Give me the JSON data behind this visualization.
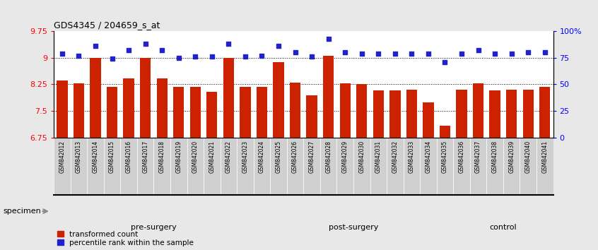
{
  "title": "GDS4345 / 204659_s_at",
  "samples": [
    "GSM842012",
    "GSM842013",
    "GSM842014",
    "GSM842015",
    "GSM842016",
    "GSM842017",
    "GSM842018",
    "GSM842019",
    "GSM842020",
    "GSM842021",
    "GSM842022",
    "GSM842023",
    "GSM842024",
    "GSM842025",
    "GSM842026",
    "GSM842027",
    "GSM842028",
    "GSM842029",
    "GSM842030",
    "GSM842031",
    "GSM842032",
    "GSM842033",
    "GSM842034",
    "GSM842035",
    "GSM842036",
    "GSM842037",
    "GSM842038",
    "GSM842039",
    "GSM842040",
    "GSM842041"
  ],
  "bar_values": [
    8.35,
    8.28,
    8.99,
    8.18,
    8.42,
    9.0,
    8.42,
    8.18,
    8.18,
    8.05,
    9.0,
    8.18,
    8.18,
    8.88,
    8.3,
    7.95,
    9.05,
    8.28,
    8.25,
    8.08,
    8.08,
    8.1,
    7.75,
    7.08,
    8.1,
    8.28,
    8.08,
    8.1,
    8.1,
    8.18
  ],
  "percentile_values": [
    79,
    77,
    86,
    74,
    82,
    88,
    82,
    75,
    76,
    76,
    88,
    76,
    77,
    86,
    80,
    76,
    93,
    80,
    79,
    79,
    79,
    79,
    79,
    71,
    79,
    82,
    79,
    79,
    80,
    80
  ],
  "groups": [
    {
      "label": "pre-surgery",
      "start": 0,
      "end": 12
    },
    {
      "label": "post-surgery",
      "start": 12,
      "end": 24
    },
    {
      "label": "control",
      "start": 24,
      "end": 30
    }
  ],
  "group_colors": [
    "#ccffcc",
    "#90ee90",
    "#44cc44"
  ],
  "ylim_left": [
    6.75,
    9.75
  ],
  "yticks_left": [
    6.75,
    7.5,
    8.25,
    9.0,
    9.75
  ],
  "ytick_labels_left": [
    "6.75",
    "7.5",
    "8.25",
    "9",
    "9.75"
  ],
  "ylim_right": [
    0,
    100
  ],
  "yticks_right": [
    0,
    25,
    50,
    75,
    100
  ],
  "ytick_labels_right": [
    "0",
    "25",
    "50",
    "75",
    "100%"
  ],
  "bar_color": "#cc2200",
  "dot_color": "#2222cc",
  "bar_bottom": 6.75,
  "legend_items": [
    "transformed count",
    "percentile rank within the sample"
  ],
  "legend_colors": [
    "#cc2200",
    "#2222cc"
  ],
  "specimen_label": "specimen",
  "fig_bg": "#e8e8e8",
  "plot_bg": "#ffffff",
  "label_area_bg": "#c8c8c8"
}
